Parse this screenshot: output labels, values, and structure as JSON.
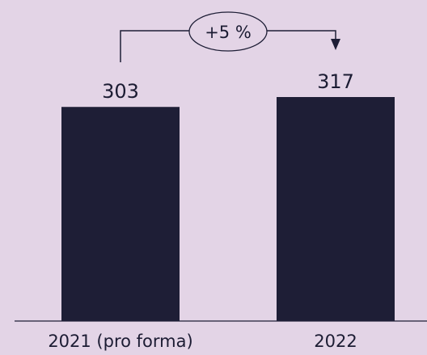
{
  "colors": {
    "background": "#e3d4e6",
    "bar": "#1e1e36",
    "text": "#1c1c33"
  },
  "chart_data": {
    "type": "bar",
    "categories": [
      "2021 (pro forma)",
      "2022"
    ],
    "values": [
      303,
      317
    ],
    "value_labels": [
      "303",
      "317"
    ],
    "title": "",
    "xlabel": "",
    "ylabel": "",
    "ylim": [
      0,
      317
    ],
    "grid": false,
    "annotation": {
      "label": "+5 %",
      "from": "2021 (pro forma)",
      "to": "2022"
    }
  }
}
